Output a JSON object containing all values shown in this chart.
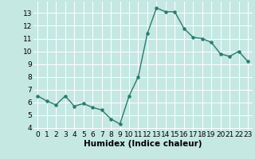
{
  "x": [
    0,
    1,
    2,
    3,
    4,
    5,
    6,
    7,
    8,
    9,
    10,
    11,
    12,
    13,
    14,
    15,
    16,
    17,
    18,
    19,
    20,
    21,
    22,
    23
  ],
  "y": [
    6.5,
    6.1,
    5.8,
    6.5,
    5.7,
    5.9,
    5.6,
    5.4,
    4.7,
    4.3,
    6.5,
    8.0,
    11.4,
    13.4,
    13.1,
    13.1,
    11.8,
    11.1,
    11.0,
    10.7,
    9.8,
    9.6,
    10.0,
    9.2
  ],
  "line_color": "#2a7a6e",
  "marker_color": "#2a7a6e",
  "bg_color": "#c5e8e3",
  "grid_color": "#ffffff",
  "xlabel": "Humidex (Indice chaleur)",
  "xlabel_fontsize": 7.5,
  "tick_fontsize": 6.5,
  "xlim": [
    -0.5,
    23.5
  ],
  "ylim": [
    3.8,
    13.9
  ],
  "yticks": [
    4,
    5,
    6,
    7,
    8,
    9,
    10,
    11,
    12,
    13
  ],
  "xticks": [
    0,
    1,
    2,
    3,
    4,
    5,
    6,
    7,
    8,
    9,
    10,
    11,
    12,
    13,
    14,
    15,
    16,
    17,
    18,
    19,
    20,
    21,
    22,
    23
  ],
  "linewidth": 1.0,
  "markersize": 2.2
}
